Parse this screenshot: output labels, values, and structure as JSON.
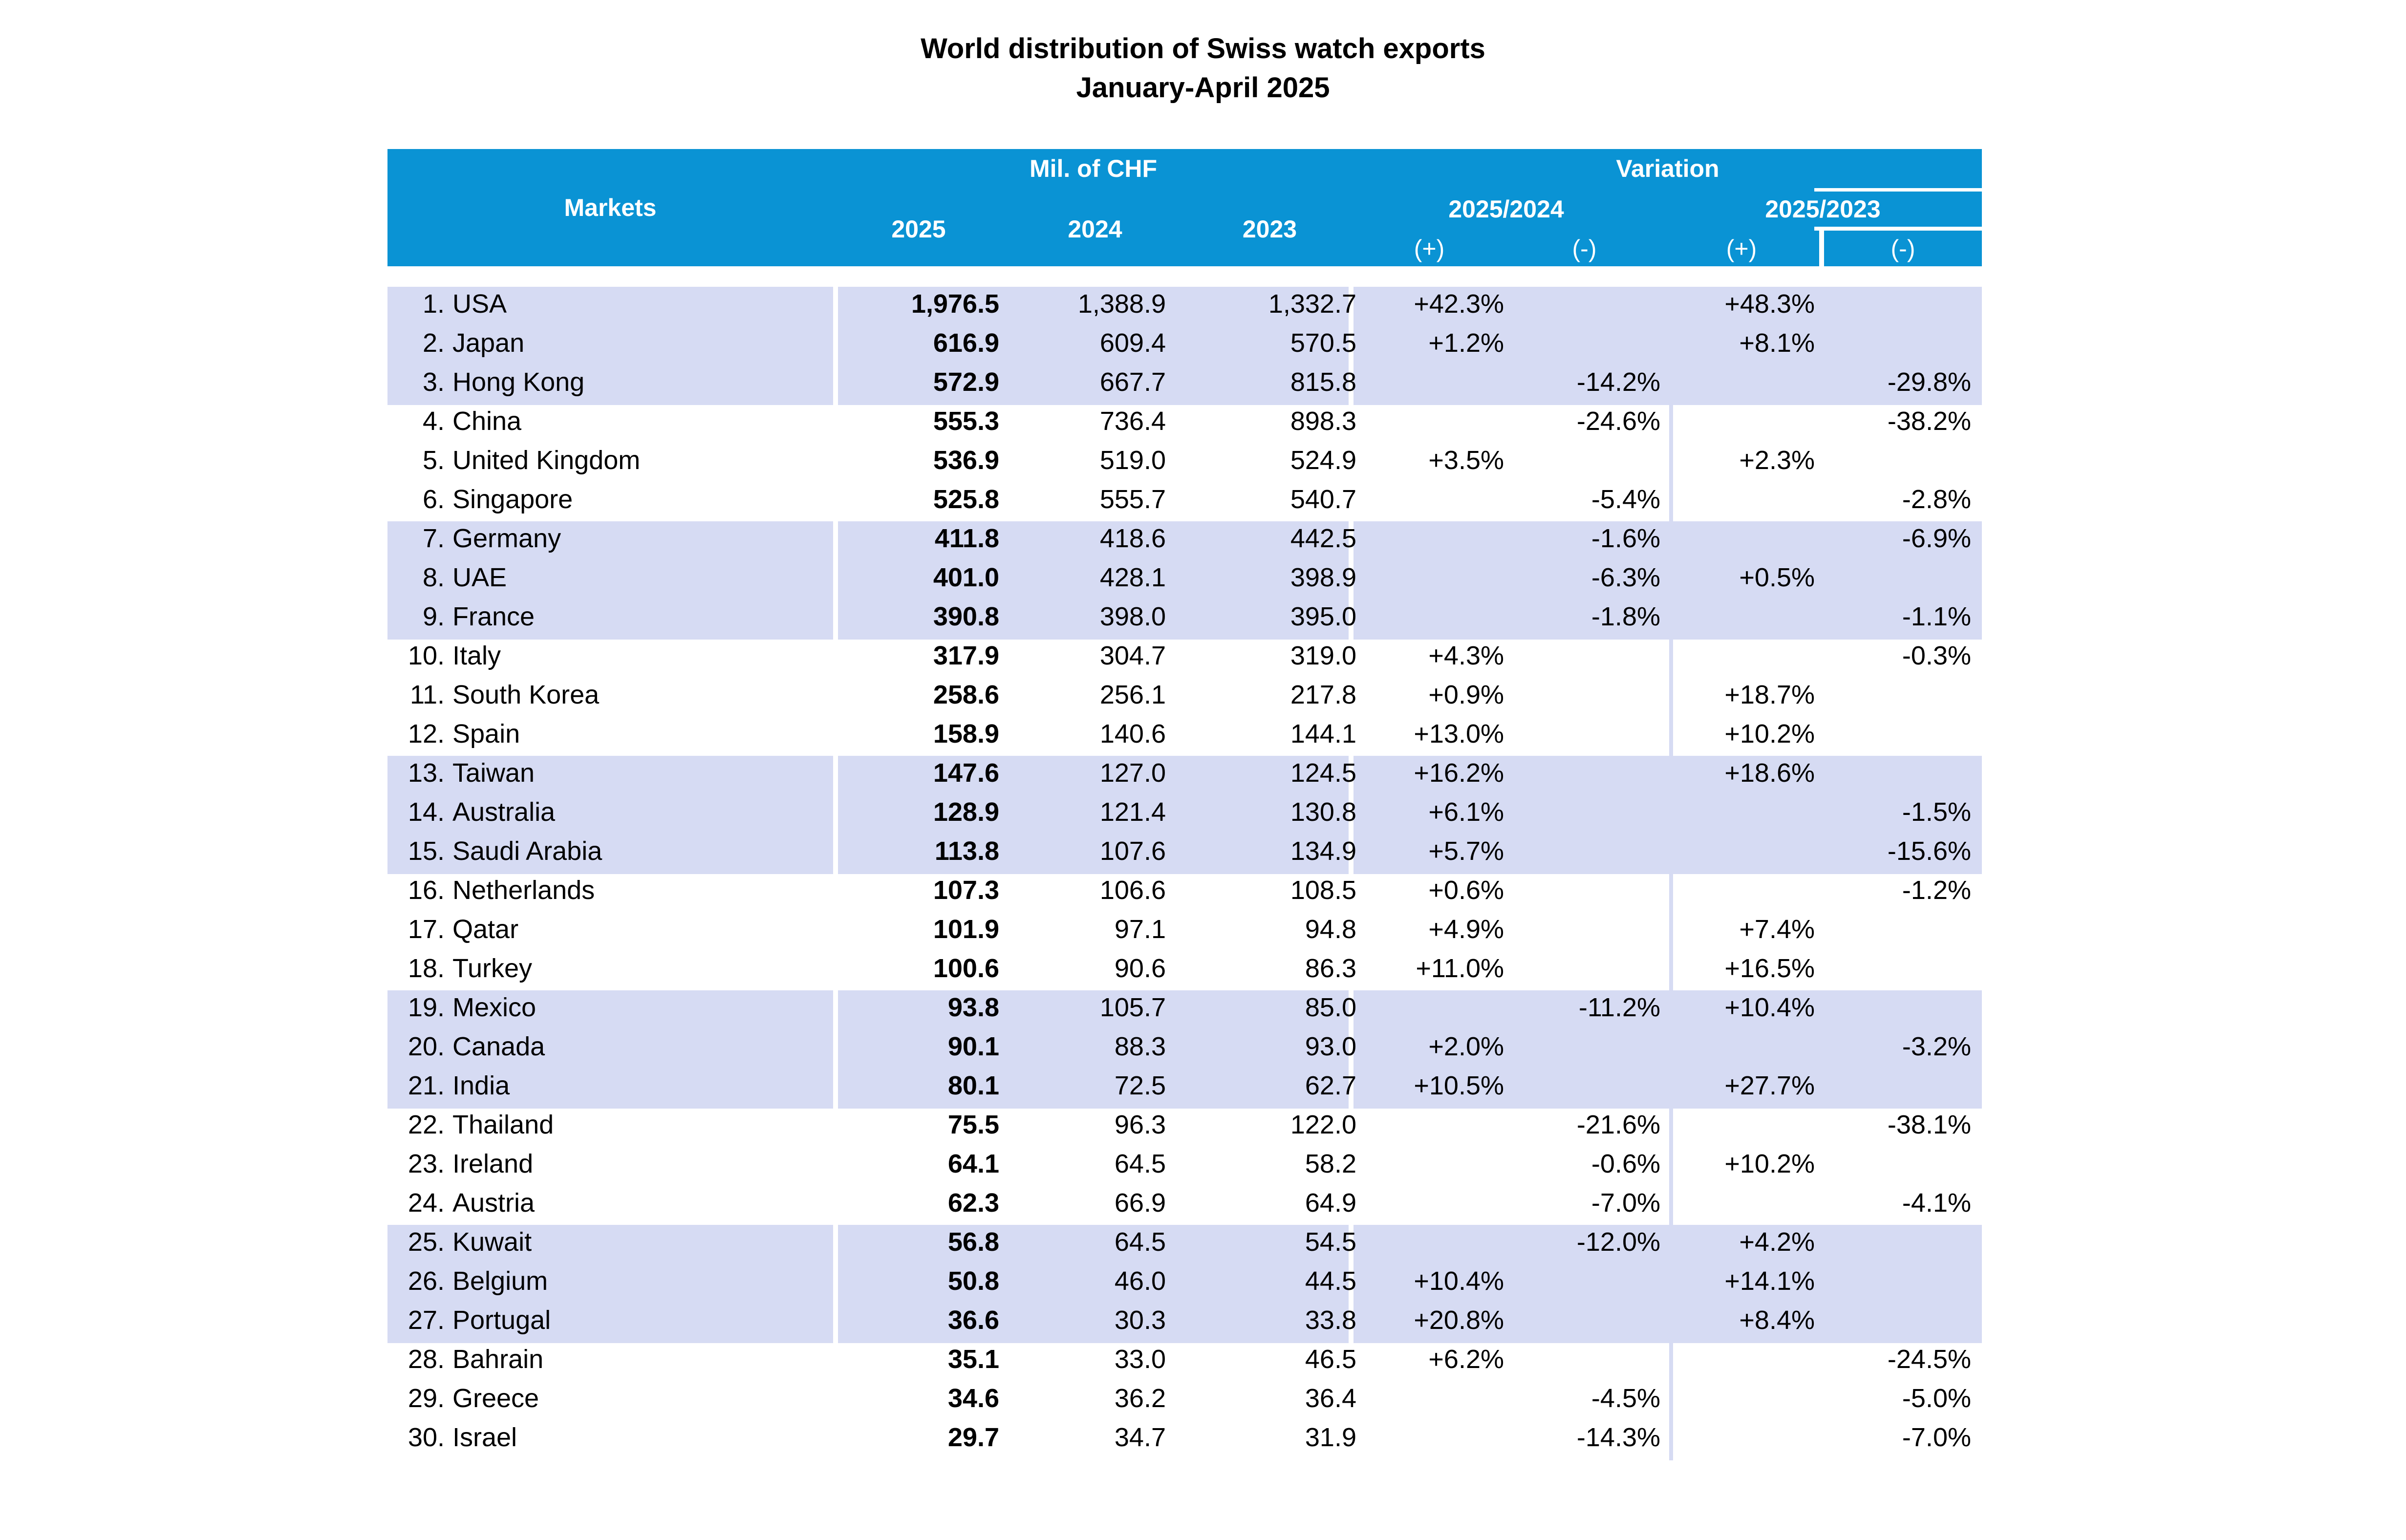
{
  "title": "World distribution of Swiss watch exports",
  "subtitle": "January-April 2025",
  "header": {
    "markets": "Markets",
    "mil_chf": "Mil. of CHF",
    "y2025": "2025",
    "y2024": "2024",
    "y2023": "2023",
    "variation": "Variation",
    "v_2025_2024": "2025/2024",
    "v_2025_2023": "2025/2023",
    "plus": "(+)",
    "minus": "(-)"
  },
  "colors": {
    "header_bg": "#0a93d4",
    "band_bg": "#d6dbf3"
  },
  "chart_data": {
    "type": "table",
    "title": "World distribution of Swiss watch exports",
    "subtitle": "January-April 2025",
    "columns": [
      "Markets",
      "2025",
      "2024",
      "2023",
      "2025/2024 (+)",
      "2025/2024 (-)",
      "2025/2023 (+)",
      "2025/2023 (-)"
    ],
    "rows": [
      {
        "rank": "1.",
        "market": "USA",
        "y2025": "1,976.5",
        "y2024": "1,388.9",
        "y2023": "1,332.7",
        "v2024_plus": "+42.3%",
        "v2024_minus": "",
        "v2023_plus": "+48.3%",
        "v2023_minus": ""
      },
      {
        "rank": "2.",
        "market": "Japan",
        "y2025": "616.9",
        "y2024": "609.4",
        "y2023": "570.5",
        "v2024_plus": "+1.2%",
        "v2024_minus": "",
        "v2023_plus": "+8.1%",
        "v2023_minus": ""
      },
      {
        "rank": "3.",
        "market": "Hong Kong",
        "y2025": "572.9",
        "y2024": "667.7",
        "y2023": "815.8",
        "v2024_plus": "",
        "v2024_minus": "-14.2%",
        "v2023_plus": "",
        "v2023_minus": "-29.8%"
      },
      {
        "rank": "4.",
        "market": "China",
        "y2025": "555.3",
        "y2024": "736.4",
        "y2023": "898.3",
        "v2024_plus": "",
        "v2024_minus": "-24.6%",
        "v2023_plus": "",
        "v2023_minus": "-38.2%"
      },
      {
        "rank": "5.",
        "market": "United Kingdom",
        "y2025": "536.9",
        "y2024": "519.0",
        "y2023": "524.9",
        "v2024_plus": "+3.5%",
        "v2024_minus": "",
        "v2023_plus": "+2.3%",
        "v2023_minus": ""
      },
      {
        "rank": "6.",
        "market": "Singapore",
        "y2025": "525.8",
        "y2024": "555.7",
        "y2023": "540.7",
        "v2024_plus": "",
        "v2024_minus": "-5.4%",
        "v2023_plus": "",
        "v2023_minus": "-2.8%"
      },
      {
        "rank": "7.",
        "market": "Germany",
        "y2025": "411.8",
        "y2024": "418.6",
        "y2023": "442.5",
        "v2024_plus": "",
        "v2024_minus": "-1.6%",
        "v2023_plus": "",
        "v2023_minus": "-6.9%"
      },
      {
        "rank": "8.",
        "market": "UAE",
        "y2025": "401.0",
        "y2024": "428.1",
        "y2023": "398.9",
        "v2024_plus": "",
        "v2024_minus": "-6.3%",
        "v2023_plus": "+0.5%",
        "v2023_minus": ""
      },
      {
        "rank": "9.",
        "market": "France",
        "y2025": "390.8",
        "y2024": "398.0",
        "y2023": "395.0",
        "v2024_plus": "",
        "v2024_minus": "-1.8%",
        "v2023_plus": "",
        "v2023_minus": "-1.1%"
      },
      {
        "rank": "10.",
        "market": "Italy",
        "y2025": "317.9",
        "y2024": "304.7",
        "y2023": "319.0",
        "v2024_plus": "+4.3%",
        "v2024_minus": "",
        "v2023_plus": "",
        "v2023_minus": "-0.3%"
      },
      {
        "rank": "11.",
        "market": "South Korea",
        "y2025": "258.6",
        "y2024": "256.1",
        "y2023": "217.8",
        "v2024_plus": "+0.9%",
        "v2024_minus": "",
        "v2023_plus": "+18.7%",
        "v2023_minus": ""
      },
      {
        "rank": "12.",
        "market": "Spain",
        "y2025": "158.9",
        "y2024": "140.6",
        "y2023": "144.1",
        "v2024_plus": "+13.0%",
        "v2024_minus": "",
        "v2023_plus": "+10.2%",
        "v2023_minus": ""
      },
      {
        "rank": "13.",
        "market": "Taiwan",
        "y2025": "147.6",
        "y2024": "127.0",
        "y2023": "124.5",
        "v2024_plus": "+16.2%",
        "v2024_minus": "",
        "v2023_plus": "+18.6%",
        "v2023_minus": ""
      },
      {
        "rank": "14.",
        "market": "Australia",
        "y2025": "128.9",
        "y2024": "121.4",
        "y2023": "130.8",
        "v2024_plus": "+6.1%",
        "v2024_minus": "",
        "v2023_plus": "",
        "v2023_minus": "-1.5%"
      },
      {
        "rank": "15.",
        "market": "Saudi Arabia",
        "y2025": "113.8",
        "y2024": "107.6",
        "y2023": "134.9",
        "v2024_plus": "+5.7%",
        "v2024_minus": "",
        "v2023_plus": "",
        "v2023_minus": "-15.6%"
      },
      {
        "rank": "16.",
        "market": "Netherlands",
        "y2025": "107.3",
        "y2024": "106.6",
        "y2023": "108.5",
        "v2024_plus": "+0.6%",
        "v2024_minus": "",
        "v2023_plus": "",
        "v2023_minus": "-1.2%"
      },
      {
        "rank": "17.",
        "market": "Qatar",
        "y2025": "101.9",
        "y2024": "97.1",
        "y2023": "94.8",
        "v2024_plus": "+4.9%",
        "v2024_minus": "",
        "v2023_plus": "+7.4%",
        "v2023_minus": ""
      },
      {
        "rank": "18.",
        "market": "Turkey",
        "y2025": "100.6",
        "y2024": "90.6",
        "y2023": "86.3",
        "v2024_plus": "+11.0%",
        "v2024_minus": "",
        "v2023_plus": "+16.5%",
        "v2023_minus": ""
      },
      {
        "rank": "19.",
        "market": "Mexico",
        "y2025": "93.8",
        "y2024": "105.7",
        "y2023": "85.0",
        "v2024_plus": "",
        "v2024_minus": "-11.2%",
        "v2023_plus": "+10.4%",
        "v2023_minus": ""
      },
      {
        "rank": "20.",
        "market": "Canada",
        "y2025": "90.1",
        "y2024": "88.3",
        "y2023": "93.0",
        "v2024_plus": "+2.0%",
        "v2024_minus": "",
        "v2023_plus": "",
        "v2023_minus": "-3.2%"
      },
      {
        "rank": "21.",
        "market": "India",
        "y2025": "80.1",
        "y2024": "72.5",
        "y2023": "62.7",
        "v2024_plus": "+10.5%",
        "v2024_minus": "",
        "v2023_plus": "+27.7%",
        "v2023_minus": ""
      },
      {
        "rank": "22.",
        "market": "Thailand",
        "y2025": "75.5",
        "y2024": "96.3",
        "y2023": "122.0",
        "v2024_plus": "",
        "v2024_minus": "-21.6%",
        "v2023_plus": "",
        "v2023_minus": "-38.1%"
      },
      {
        "rank": "23.",
        "market": "Ireland",
        "y2025": "64.1",
        "y2024": "64.5",
        "y2023": "58.2",
        "v2024_plus": "",
        "v2024_minus": "-0.6%",
        "v2023_plus": "+10.2%",
        "v2023_minus": ""
      },
      {
        "rank": "24.",
        "market": "Austria",
        "y2025": "62.3",
        "y2024": "66.9",
        "y2023": "64.9",
        "v2024_plus": "",
        "v2024_minus": "-7.0%",
        "v2023_plus": "",
        "v2023_minus": "-4.1%"
      },
      {
        "rank": "25.",
        "market": "Kuwait",
        "y2025": "56.8",
        "y2024": "64.5",
        "y2023": "54.5",
        "v2024_plus": "",
        "v2024_minus": "-12.0%",
        "v2023_plus": "+4.2%",
        "v2023_minus": ""
      },
      {
        "rank": "26.",
        "market": "Belgium",
        "y2025": "50.8",
        "y2024": "46.0",
        "y2023": "44.5",
        "v2024_plus": "+10.4%",
        "v2024_minus": "",
        "v2023_plus": "+14.1%",
        "v2023_minus": ""
      },
      {
        "rank": "27.",
        "market": "Portugal",
        "y2025": "36.6",
        "y2024": "30.3",
        "y2023": "33.8",
        "v2024_plus": "+20.8%",
        "v2024_minus": "",
        "v2023_plus": "+8.4%",
        "v2023_minus": ""
      },
      {
        "rank": "28.",
        "market": "Bahrain",
        "y2025": "35.1",
        "y2024": "33.0",
        "y2023": "46.5",
        "v2024_plus": "+6.2%",
        "v2024_minus": "",
        "v2023_plus": "",
        "v2023_minus": "-24.5%"
      },
      {
        "rank": "29.",
        "market": "Greece",
        "y2025": "34.6",
        "y2024": "36.2",
        "y2023": "36.4",
        "v2024_plus": "",
        "v2024_minus": "-4.5%",
        "v2023_plus": "",
        "v2023_minus": "-5.0%"
      },
      {
        "rank": "30.",
        "market": "Israel",
        "y2025": "29.7",
        "y2024": "34.7",
        "y2023": "31.9",
        "v2024_plus": "",
        "v2024_minus": "-14.3%",
        "v2023_plus": "",
        "v2023_minus": "-7.0%"
      }
    ]
  }
}
